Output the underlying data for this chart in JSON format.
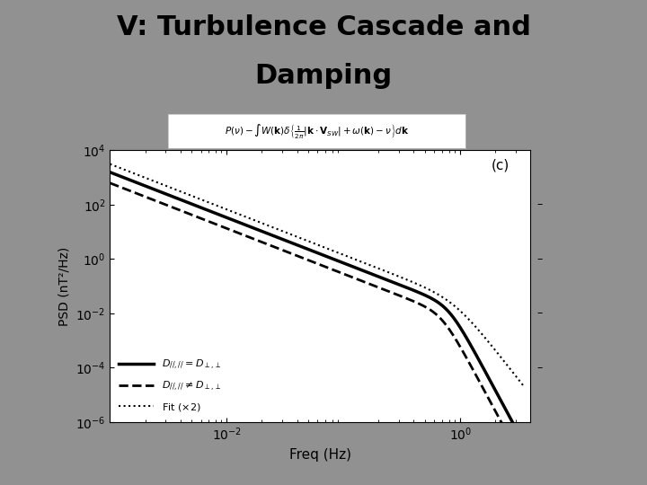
{
  "title_line1": "V: Turbulence Cascade and",
  "title_line2": "Damping",
  "title_fontsize": 22,
  "title_color": "#000000",
  "background_color": "#919191",
  "plot_bg_color": "#ffffff",
  "panel_label": "(c)",
  "xlabel": "Freq (Hz)",
  "ylabel": "PSD (nT²/Hz)",
  "formula_text": "$P(\\nu) - \\int W(\\mathbf{k})\\delta\\left\\{\\frac{1}{2\\pi}|\\mathbf{k}\\cdot\\mathbf{V}_{SW}| + \\omega(\\mathbf{k}) - \\nu\\right\\}d\\mathbf{k}$",
  "legend_entries": [
    {
      "label": "$D_{//,//}=D_{\\perp,\\perp}$",
      "linestyle": "-",
      "linewidth": 2.5,
      "color": "#000000"
    },
    {
      "label": "$D_{//,//}\\neq D_{\\perp,\\perp}$",
      "linestyle": "--",
      "linewidth": 2.0,
      "color": "#000000"
    },
    {
      "label": "Fit ($\\times 2$)",
      "linestyle": ":",
      "linewidth": 1.5,
      "color": "#000000"
    }
  ],
  "xlim": [
    0.001,
    4.0
  ],
  "ylim": [
    1e-06,
    10000.0
  ],
  "xticks": [
    0.01,
    1.0
  ],
  "yticks": [
    1e-06,
    0.0001,
    0.01,
    1.0,
    100.0,
    10000.0
  ],
  "dash_marks": [
    100.0,
    1.0,
    0.01,
    0.0001
  ],
  "solid_params": {
    "A": 250.0,
    "f0": 0.003,
    "alpha1": 1.67,
    "alpha2": 8.0,
    "f_break": 0.8
  },
  "dashed_params": {
    "A": 100.0,
    "f0": 0.003,
    "alpha1": 1.67,
    "alpha2": 8.0,
    "f_break": 0.7
  },
  "dotted_params": {
    "A": 500.0,
    "f0": 0.003,
    "alpha1": 1.67,
    "alpha2": 5.5,
    "f_break": 0.9
  }
}
